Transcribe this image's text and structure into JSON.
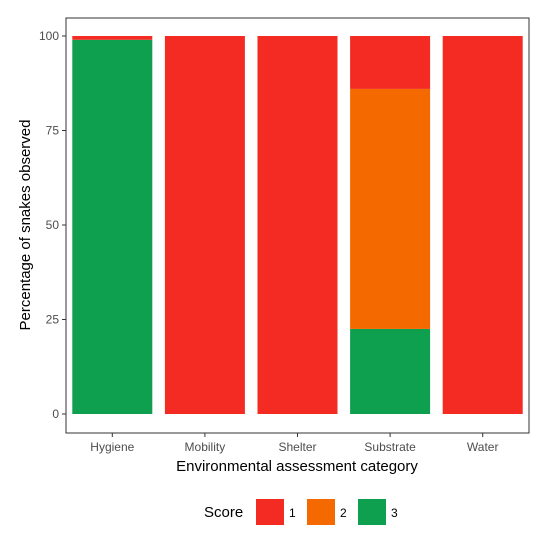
{
  "chart_data": {
    "type": "bar",
    "stacked": true,
    "title": "",
    "xlabel": "Environmental assessment category",
    "ylabel": "Percentage of snakes observed",
    "categories": [
      "Hygiene",
      "Mobility",
      "Shelter",
      "Substrate",
      "Water"
    ],
    "ylim": [
      0,
      100
    ],
    "yticks": [
      0,
      25,
      50,
      75,
      100
    ],
    "grid": false,
    "series": [
      {
        "name": "3",
        "color": "#0e9f4f",
        "values": [
          99,
          0,
          0,
          22.5,
          0
        ]
      },
      {
        "name": "2",
        "color": "#f46a00",
        "values": [
          0,
          0,
          0,
          63.5,
          0
        ]
      },
      {
        "name": "1",
        "color": "#f32b22",
        "values": [
          1,
          100,
          100,
          14,
          100
        ]
      }
    ],
    "legend": {
      "title": "Score",
      "position": "bottom",
      "entries": [
        {
          "label": "1",
          "color": "#f32b22"
        },
        {
          "label": "2",
          "color": "#f46a00"
        },
        {
          "label": "3",
          "color": "#0e9f4f"
        }
      ]
    }
  }
}
